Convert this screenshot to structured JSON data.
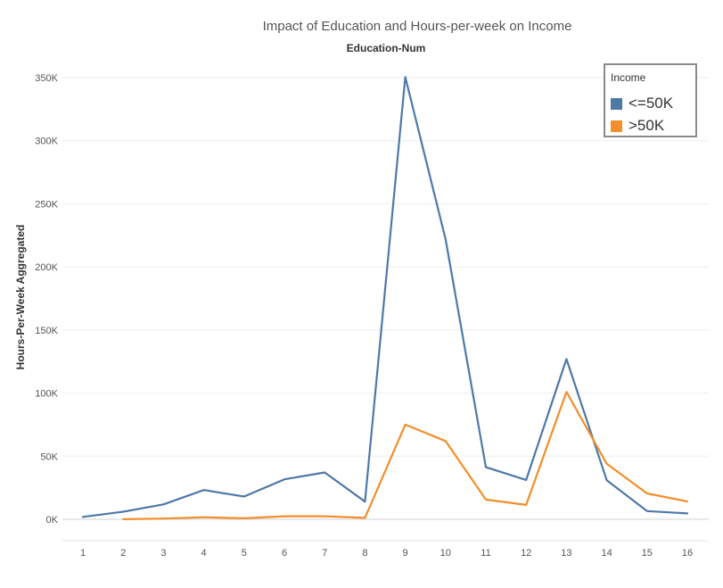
{
  "chart_data": {
    "type": "line",
    "title": "Impact of Education and Hours-per-week on Income",
    "subtitle": "Education-Num",
    "xlabel": "",
    "ylabel": "Hours-Per-Week Aggregated",
    "x": [
      1,
      2,
      3,
      4,
      5,
      6,
      7,
      8,
      9,
      10,
      11,
      12,
      13,
      14,
      15,
      16
    ],
    "xticks": [
      "1",
      "2",
      "3",
      "4",
      "5",
      "6",
      "7",
      "8",
      "9",
      "10",
      "11",
      "12",
      "13",
      "14",
      "15",
      "16"
    ],
    "yticks": [
      {
        "value": 0,
        "label": "0K"
      },
      {
        "value": 50000,
        "label": "50K"
      },
      {
        "value": 100000,
        "label": "100K"
      },
      {
        "value": 150000,
        "label": "150K"
      },
      {
        "value": 200000,
        "label": "200K"
      },
      {
        "value": 250000,
        "label": "250K"
      },
      {
        "value": 300000,
        "label": "300K"
      },
      {
        "value": 350000,
        "label": "350K"
      }
    ],
    "ylim": [
      0,
      350000
    ],
    "grid": true,
    "legend_title": "Income",
    "legend_position": "top-right",
    "series": [
      {
        "name": "<=50K",
        "color": "#4e79a7",
        "points": [
          [
            1,
            1900
          ],
          [
            2,
            6000
          ],
          [
            3,
            11800
          ],
          [
            4,
            23200
          ],
          [
            5,
            18000
          ],
          [
            6,
            31700
          ],
          [
            7,
            37100
          ],
          [
            8,
            14000
          ],
          [
            9,
            350500
          ],
          [
            10,
            222000
          ],
          [
            11,
            41300
          ],
          [
            12,
            31200
          ],
          [
            13,
            127000
          ],
          [
            14,
            31000
          ],
          [
            15,
            6500
          ],
          [
            16,
            4700
          ]
        ]
      },
      {
        "name": ">50K",
        "color": "#f28e2b",
        "points": [
          [
            2,
            100
          ],
          [
            3,
            600
          ],
          [
            4,
            1600
          ],
          [
            5,
            800
          ],
          [
            6,
            2400
          ],
          [
            7,
            2400
          ],
          [
            8,
            1100
          ],
          [
            9,
            75000
          ],
          [
            10,
            62000
          ],
          [
            11,
            15600
          ],
          [
            12,
            11400
          ],
          [
            13,
            101000
          ],
          [
            14,
            44000
          ],
          [
            15,
            20500
          ],
          [
            16,
            14200
          ]
        ]
      }
    ]
  }
}
